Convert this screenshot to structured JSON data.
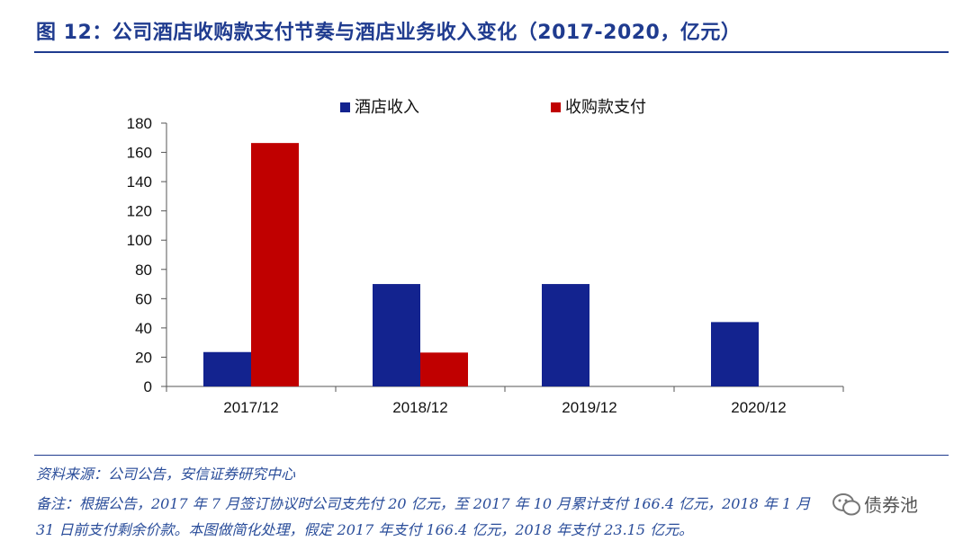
{
  "title": "图 12：公司酒店收购款支付节奏与酒店业务收入变化（2017-2020，亿元）",
  "source": "资料来源：公司公告，安信证券研究中心",
  "note_line1": "备注：根据公告，2017 年 7 月签订协议时公司支先付 20 亿元，至 2017 年 10 月累计支付 166.4 亿元，2018 年 1 月",
  "note_line2": "31 日前支付剩余价款。本图做简化处理，假定 2017 年支付 166.4 亿元，2018 年支付 23.15 亿元。",
  "watermark": "债券池",
  "watermark_icon": "wechat-icon",
  "colors": {
    "series1": "#13238f",
    "series2": "#c00000",
    "title": "#1f3b8f"
  },
  "chart_data": {
    "type": "bar",
    "categories": [
      "2017/12",
      "2018/12",
      "2019/12",
      "2020/12"
    ],
    "series": [
      {
        "name": "酒店收入",
        "values": [
          23.5,
          70,
          70,
          44
        ]
      },
      {
        "name": "收购款支付",
        "values": [
          166.4,
          23.15,
          null,
          null
        ]
      }
    ],
    "ylim": [
      0,
      180
    ],
    "yticks": [
      0,
      20,
      40,
      60,
      80,
      100,
      120,
      140,
      160,
      180
    ],
    "legend": "top-center",
    "grid": false
  }
}
